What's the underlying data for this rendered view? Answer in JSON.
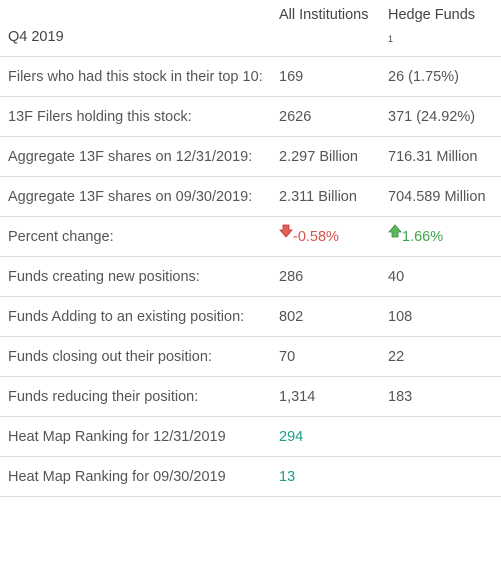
{
  "header": {
    "period": "Q4 2019",
    "col_all": "All Institutions",
    "col_hedge": "Hedge Funds",
    "hedge_footnote": "1"
  },
  "rows": [
    {
      "label": "Filers who had this stock in their top 10:",
      "all": "169",
      "hedge": "26 (1.75%)"
    },
    {
      "label": "13F Filers holding this stock:",
      "all": "2626",
      "hedge": "371 (24.92%)"
    },
    {
      "label": "Aggregate 13F shares on 12/31/2019:",
      "all": "2.297 Billion",
      "hedge": "716.31 Million"
    },
    {
      "label": "Aggregate 13F shares on 09/30/2019:",
      "all": "2.311 Billion",
      "hedge": "704.589 Million"
    },
    {
      "label": "Percent change:",
      "all": "-0.58%",
      "hedge": "1.66%",
      "all_icon": "arrow-down-icon",
      "hedge_icon": "arrow-up-icon"
    },
    {
      "label": "Funds creating new positions:",
      "all": "286",
      "hedge": "40"
    },
    {
      "label": "Funds Adding to an existing position:",
      "all": "802",
      "hedge": "108"
    },
    {
      "label": "Funds closing out their position:",
      "all": "70",
      "hedge": "22"
    },
    {
      "label": "Funds reducing their position:",
      "all": "1,314",
      "hedge": "183"
    },
    {
      "label": "Heat Map Ranking for 12/31/2019",
      "all": "294",
      "hedge": ""
    },
    {
      "label": "Heat Map Ranking for 09/30/2019",
      "all": "13",
      "hedge": ""
    }
  ],
  "colors": {
    "negative": "#d9534f",
    "positive": "#3fa34d",
    "rank_link": "#1a9d8a",
    "border": "#dddddd"
  }
}
